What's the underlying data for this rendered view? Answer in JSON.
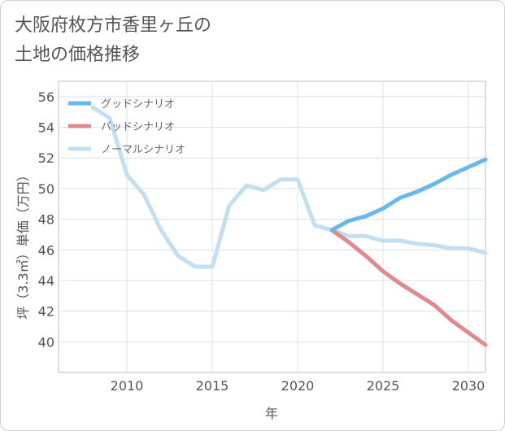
{
  "title_line1": "大阪府枚方市香里ヶ丘の",
  "title_line2": "土地の価格推移",
  "chart_data": {
    "type": "line",
    "xlabel": "年",
    "ylabel": "坪（3.3㎡）単価（万円）",
    "xlim": [
      2006,
      2031
    ],
    "ylim": [
      38,
      57
    ],
    "xticks": [
      2010,
      2015,
      2020,
      2025,
      2030
    ],
    "yticks": [
      40,
      42,
      44,
      46,
      48,
      50,
      52,
      54,
      56
    ],
    "grid": true,
    "legend_position": "top-left",
    "series": [
      {
        "name": "グッドシナリオ",
        "color": "#6ab7ec",
        "x": [
          2022,
          2023,
          2024,
          2025,
          2026,
          2027,
          2028,
          2029,
          2030,
          2031
        ],
        "y": [
          47.3,
          47.9,
          48.2,
          48.7,
          49.4,
          49.8,
          50.3,
          50.9,
          51.4,
          51.9
        ]
      },
      {
        "name": "バッドシナリオ",
        "color": "#de8a8e",
        "x": [
          2022,
          2023,
          2024,
          2025,
          2026,
          2027,
          2028,
          2029,
          2030,
          2031
        ],
        "y": [
          47.3,
          46.5,
          45.6,
          44.6,
          43.8,
          43.1,
          42.4,
          41.4,
          40.6,
          39.8
        ]
      },
      {
        "name": "ノーマルシナリオ",
        "color": "#c1dff0",
        "x": [
          2008,
          2009,
          2010,
          2011,
          2012,
          2013,
          2014,
          2015,
          2016,
          2017,
          2018,
          2019,
          2020,
          2021,
          2022,
          2023,
          2024,
          2025,
          2026,
          2027,
          2028,
          2029,
          2030,
          2031
        ],
        "y": [
          55.3,
          54.6,
          50.9,
          49.6,
          47.3,
          45.6,
          44.9,
          44.9,
          48.9,
          50.2,
          49.9,
          50.6,
          50.6,
          47.6,
          47.3,
          46.9,
          46.9,
          46.6,
          46.6,
          46.4,
          46.3,
          46.1,
          46.1,
          45.8
        ]
      }
    ]
  }
}
